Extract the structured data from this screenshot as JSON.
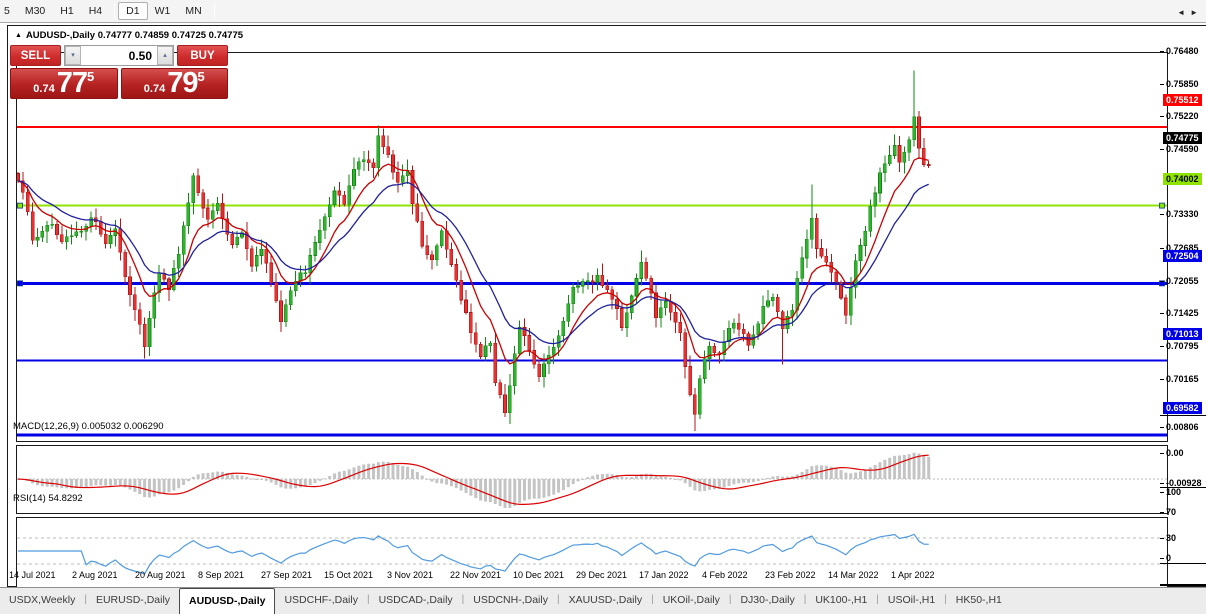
{
  "toolbar": {
    "timeframes": [
      {
        "label": "5"
      },
      {
        "label": "M30"
      },
      {
        "label": "H1"
      },
      {
        "label": "H4"
      },
      {
        "sep": true
      },
      {
        "label": "D1",
        "active": true
      },
      {
        "label": "W1"
      },
      {
        "label": "MN"
      },
      {
        "sep": true
      }
    ]
  },
  "chart_header": {
    "collapse_icon": "▲",
    "title": "AUDUSD-,Daily",
    "ohlc_text": "0.74777 0.74859 0.74725 0.74775",
    "open": "0.74777",
    "high": "0.74859",
    "low": "0.74725",
    "close": "0.74775"
  },
  "trade_panel": {
    "sell_label": "SELL",
    "buy_label": "BUY",
    "volume": "0.50",
    "spin_down_icon": "▾",
    "spin_up_icon": "▴",
    "sell_price": {
      "prefix": "0.74",
      "big": "77",
      "sup": "5"
    },
    "buy_price": {
      "prefix": "0.74",
      "big": "79",
      "sup": "5"
    }
  },
  "indicator_labels": {
    "macd": "MACD(12,26,9) 0.005032 0.006290",
    "rsi": "RSI(14) 54.8292"
  },
  "colors": {
    "up": "#2fb32f",
    "up_border": "#118811",
    "down": "#e63232",
    "down_border": "#b31414",
    "ma_fast": "#cc0000",
    "ma_slow": "#20209e",
    "macd_hist": "#c4c4c4",
    "macd_signal": "#dd0000",
    "rsi_line": "#4f9be0",
    "hline_red": "#ff0000",
    "hline_green": "#8fe300",
    "hline_blue": "#0000e8",
    "badge_black": "#000000",
    "dashed_level": "#bdbdbd"
  },
  "chart_data": {
    "type": "candlestick",
    "symbol": "AUDUSD-",
    "period": "Daily",
    "x_labels": [
      "14 Jul 2021",
      "2 Aug 2021",
      "20 Aug 2021",
      "8 Sep 2021",
      "27 Sep 2021",
      "15 Oct 2021",
      "3 Nov 2021",
      "22 Nov 2021",
      "10 Dec 2021",
      "29 Dec 2021",
      "17 Jan 2022",
      "4 Feb 2022",
      "23 Feb 2022",
      "14 Mar 2022",
      "1 Apr 2022"
    ],
    "price_axis_labels": [
      {
        "text": "0.76480",
        "price": 0.7648
      },
      {
        "text": "0.75850",
        "price": 0.7585
      },
      {
        "text": "0.75220",
        "price": 0.7522
      },
      {
        "text": "0.74590",
        "price": 0.7459
      },
      {
        "text": "0.73330",
        "price": 0.7333
      },
      {
        "text": "0.72685",
        "price": 0.72685
      },
      {
        "text": "0.72055",
        "price": 0.72055
      },
      {
        "text": "0.71425",
        "price": 0.71425
      },
      {
        "text": "0.70795",
        "price": 0.70795
      },
      {
        "text": "0.70165",
        "price": 0.70165
      }
    ],
    "price_badges": [
      {
        "text": "0.75512",
        "price": 0.75512,
        "bg": "#ff0000",
        "fg": "#ffffff"
      },
      {
        "text": "0.74775",
        "price": 0.74775,
        "bg": "#000000",
        "fg": "#ffffff"
      },
      {
        "text": "0.74002",
        "price": 0.74002,
        "bg": "#8fe300",
        "fg": "#000000"
      },
      {
        "text": "0.72504",
        "price": 0.72504,
        "bg": "#0000e8",
        "fg": "#ffffff"
      },
      {
        "text": "0.71013",
        "price": 0.71013,
        "bg": "#0000e8",
        "fg": "#ffffff"
      },
      {
        "text": "0.69582",
        "price": 0.69582,
        "bg": "#0000e8",
        "fg": "#ffffff"
      }
    ],
    "hlines": [
      {
        "price": 0.75512,
        "color": "#ff0000",
        "w": 2,
        "selected": false
      },
      {
        "price": 0.74002,
        "color": "#8fe300",
        "w": 2,
        "selected": true
      },
      {
        "price": 0.72504,
        "color": "#0000e8",
        "w": 3,
        "selected": true
      },
      {
        "price": 0.71013,
        "color": "#0000e8",
        "w": 2,
        "selected": false
      },
      {
        "price": 0.69582,
        "color": "#0000e8",
        "w": 3,
        "selected": false
      }
    ],
    "macd_axis": [
      {
        "text": "0.00806",
        "v": 0.00806
      },
      {
        "text": "0.00",
        "v": 0
      },
      {
        "text": "-0.00928",
        "v": -0.00928
      }
    ],
    "rsi_axis": [
      {
        "text": "100",
        "v": 100
      },
      {
        "text": "70",
        "v": 70
      },
      {
        "text": "30",
        "v": 30
      },
      {
        "text": "0",
        "v": 0
      }
    ],
    "rsi_levels": [
      70,
      30
    ],
    "indicators": {
      "macd_fast": 12,
      "macd_slow": 26,
      "macd_signal": 9,
      "rsi_period": 14,
      "ma_fast": 9,
      "ma_slow": 18
    },
    "candles": {
      "n": 188,
      "anchors": [
        [
          0,
          0.7448
        ],
        [
          2,
          0.739
        ],
        [
          3,
          0.7333
        ],
        [
          5,
          0.7355
        ],
        [
          7,
          0.7368
        ],
        [
          9,
          0.733
        ],
        [
          12,
          0.7344
        ],
        [
          15,
          0.7379
        ],
        [
          18,
          0.7332
        ],
        [
          20,
          0.7362
        ],
        [
          22,
          0.7257
        ],
        [
          24,
          0.7195
        ],
        [
          26,
          0.7135
        ],
        [
          29,
          0.7271
        ],
        [
          31,
          0.7245
        ],
        [
          33,
          0.7305
        ],
        [
          36,
          0.7453
        ],
        [
          39,
          0.7369
        ],
        [
          41,
          0.7398
        ],
        [
          44,
          0.7325
        ],
        [
          46,
          0.7355
        ],
        [
          48,
          0.729
        ],
        [
          50,
          0.7318
        ],
        [
          52,
          0.7253
        ],
        [
          54,
          0.718
        ],
        [
          57,
          0.7255
        ],
        [
          59,
          0.7273
        ],
        [
          62,
          0.735
        ],
        [
          65,
          0.743
        ],
        [
          67,
          0.7405
        ],
        [
          69,
          0.7466
        ],
        [
          71,
          0.749
        ],
        [
          73,
          0.7472
        ],
        [
          74,
          0.7535
        ],
        [
          76,
          0.7493
        ],
        [
          78,
          0.7447
        ],
        [
          80,
          0.7468
        ],
        [
          81,
          0.74
        ],
        [
          83,
          0.7327
        ],
        [
          85,
          0.7295
        ],
        [
          87,
          0.7345
        ],
        [
          89,
          0.729
        ],
        [
          91,
          0.7223
        ],
        [
          93,
          0.716
        ],
        [
          95,
          0.7112
        ],
        [
          97,
          0.7135
        ],
        [
          98,
          0.706
        ],
        [
          100,
          0.7005
        ],
        [
          101,
          0.706
        ],
        [
          103,
          0.717
        ],
        [
          105,
          0.7127
        ],
        [
          107,
          0.7075
        ],
        [
          110,
          0.7125
        ],
        [
          112,
          0.718
        ],
        [
          114,
          0.724
        ],
        [
          117,
          0.7255
        ],
        [
          119,
          0.7263
        ],
        [
          122,
          0.722
        ],
        [
          124,
          0.717
        ],
        [
          126,
          0.723
        ],
        [
          128,
          0.7285
        ],
        [
          130,
          0.723
        ],
        [
          131,
          0.7185
        ],
        [
          133,
          0.7215
        ],
        [
          136,
          0.715
        ],
        [
          138,
          0.704
        ],
        [
          139,
          0.6995
        ],
        [
          140,
          0.707
        ],
        [
          142,
          0.7135
        ],
        [
          144,
          0.711
        ],
        [
          145,
          0.7145
        ],
        [
          147,
          0.717
        ],
        [
          149,
          0.715
        ],
        [
          150,
          0.7135
        ],
        [
          152,
          0.7175
        ],
        [
          153,
          0.72
        ],
        [
          155,
          0.7228
        ],
        [
          157,
          0.7165
        ],
        [
          159,
          0.7205
        ],
        [
          160,
          0.7255
        ],
        [
          162,
          0.733
        ],
        [
          163,
          0.737
        ],
        [
          164,
          0.732
        ],
        [
          166,
          0.729
        ],
        [
          168,
          0.7255
        ],
        [
          170,
          0.719
        ],
        [
          172,
          0.729
        ],
        [
          174,
          0.7345
        ],
        [
          175,
          0.7395
        ],
        [
          177,
          0.746
        ],
        [
          179,
          0.7495
        ],
        [
          180,
          0.7512
        ],
        [
          181,
          0.7485
        ],
        [
          183,
          0.752
        ],
        [
          184,
          0.7575
        ],
        [
          185,
          0.751
        ],
        [
          186,
          0.7478
        ],
        [
          187,
          0.74775
        ]
      ],
      "overrides": {
        "26": {
          "l": 0.7106
        },
        "74": {
          "h": 0.7555
        },
        "100": {
          "l": 0.6993
        },
        "128": {
          "h": 0.7314
        },
        "139": {
          "l": 0.6966
        },
        "157": {
          "l": 0.7094
        },
        "163": {
          "h": 0.7441
        },
        "184": {
          "h": 0.7661
        },
        "185": {
          "l": 0.749
        },
        "187": {
          "h": 0.74859,
          "l": 0.74725
        }
      }
    }
  },
  "tabs": {
    "items": [
      "USDX,Weekly",
      "EURUSD-,Daily",
      "AUDUSD-,Daily",
      "USDCHF-,Daily",
      "USDCAD-,Daily",
      "USDCNH-,Daily",
      "XAUUSD-,Daily",
      "UKOil-,Daily",
      "DJ30-,Daily",
      "UK100-,H1",
      "USOil-,H1",
      "HK50-,H1"
    ],
    "active_index": 2,
    "scroll_left_icon": "◄",
    "scroll_right_icon": "►"
  }
}
